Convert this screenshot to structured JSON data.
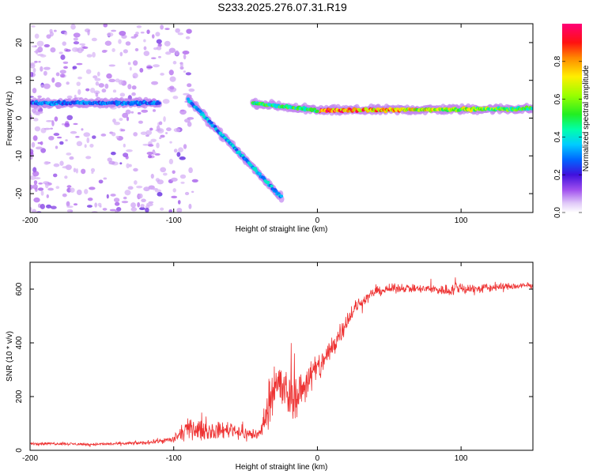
{
  "title": "S233.2025.276.07.31.R19",
  "chart_data": [
    {
      "type": "heatmap",
      "xlabel": "Height of straight line (km)",
      "ylabel": "Frequency (Hz)",
      "xlim": [
        -200,
        150
      ],
      "ylim": [
        -25,
        25
      ],
      "x_ticks": [
        -200,
        -100,
        0,
        100
      ],
      "x_tick_labels": [
        "-200",
        "-100",
        "0",
        "100"
      ],
      "y_ticks": [
        -20,
        -10,
        0,
        10,
        20
      ],
      "y_tick_labels": [
        "-20",
        "-10",
        "0",
        "10",
        "20"
      ],
      "colorbar": {
        "label": "Normalized spectral amplitude",
        "range": [
          0,
          1
        ],
        "ticks": [
          0.0,
          0.2,
          0.4,
          0.6,
          0.8
        ],
        "tick_labels": [
          "0.0",
          "0.2",
          "0.4",
          "0.6",
          "0.8"
        ]
      },
      "features": [
        {
          "name": "main-trace",
          "x": [
            0,
            150
          ],
          "freq_hz": [
            2,
            2.5
          ],
          "amplitude": [
            0.9,
            0.5
          ]
        },
        {
          "name": "upper-band",
          "x": [
            -200,
            -110
          ],
          "freq_hz": [
            4,
            4
          ],
          "amplitude": 0.3
        },
        {
          "name": "descending-branch",
          "x": [
            -90,
            -25
          ],
          "freq_hz": [
            5,
            -21
          ],
          "amplitude": 0.35
        },
        {
          "name": "mid-trace",
          "x": [
            -45,
            0
          ],
          "freq_hz": [
            4,
            2
          ],
          "amplitude": 0.5
        }
      ]
    },
    {
      "type": "line",
      "xlabel": "Height of straight line (km)",
      "ylabel": "SNR (10 * v/v)",
      "xlim": [
        -200,
        150
      ],
      "ylim": [
        0,
        700
      ],
      "x_ticks": [
        -200,
        -100,
        0,
        100
      ],
      "x_tick_labels": [
        "-200",
        "-100",
        "0",
        "100"
      ],
      "y_ticks": [
        0,
        200,
        400,
        600
      ],
      "y_tick_labels": [
        "0",
        "200",
        "400",
        "600"
      ],
      "color": "#ee3333",
      "series": [
        {
          "name": "SNR",
          "x": [
            -200,
            -180,
            -160,
            -140,
            -120,
            -110,
            -100,
            -95,
            -90,
            -80,
            -70,
            -60,
            -50,
            -40,
            -35,
            -30,
            -25,
            -20,
            -15,
            -10,
            -5,
            0,
            5,
            10,
            15,
            20,
            25,
            30,
            40,
            50,
            60,
            70,
            80,
            90,
            100,
            110,
            120,
            130,
            140,
            150
          ],
          "values": [
            25,
            25,
            22,
            24,
            28,
            35,
            40,
            60,
            80,
            75,
            70,
            80,
            60,
            60,
            150,
            260,
            230,
            200,
            200,
            230,
            280,
            300,
            340,
            380,
            430,
            480,
            520,
            550,
            590,
            600,
            605,
            600,
            600,
            595,
            605,
            600,
            605,
            610,
            610,
            615
          ],
          "noise": [
            6,
            6,
            6,
            6,
            8,
            10,
            15,
            30,
            40,
            40,
            35,
            35,
            30,
            25,
            80,
            120,
            110,
            110,
            90,
            80,
            80,
            70,
            60,
            60,
            50,
            40,
            35,
            25,
            20,
            20,
            18,
            18,
            20,
            25,
            30,
            20,
            20,
            15,
            15,
            15
          ]
        }
      ]
    }
  ]
}
